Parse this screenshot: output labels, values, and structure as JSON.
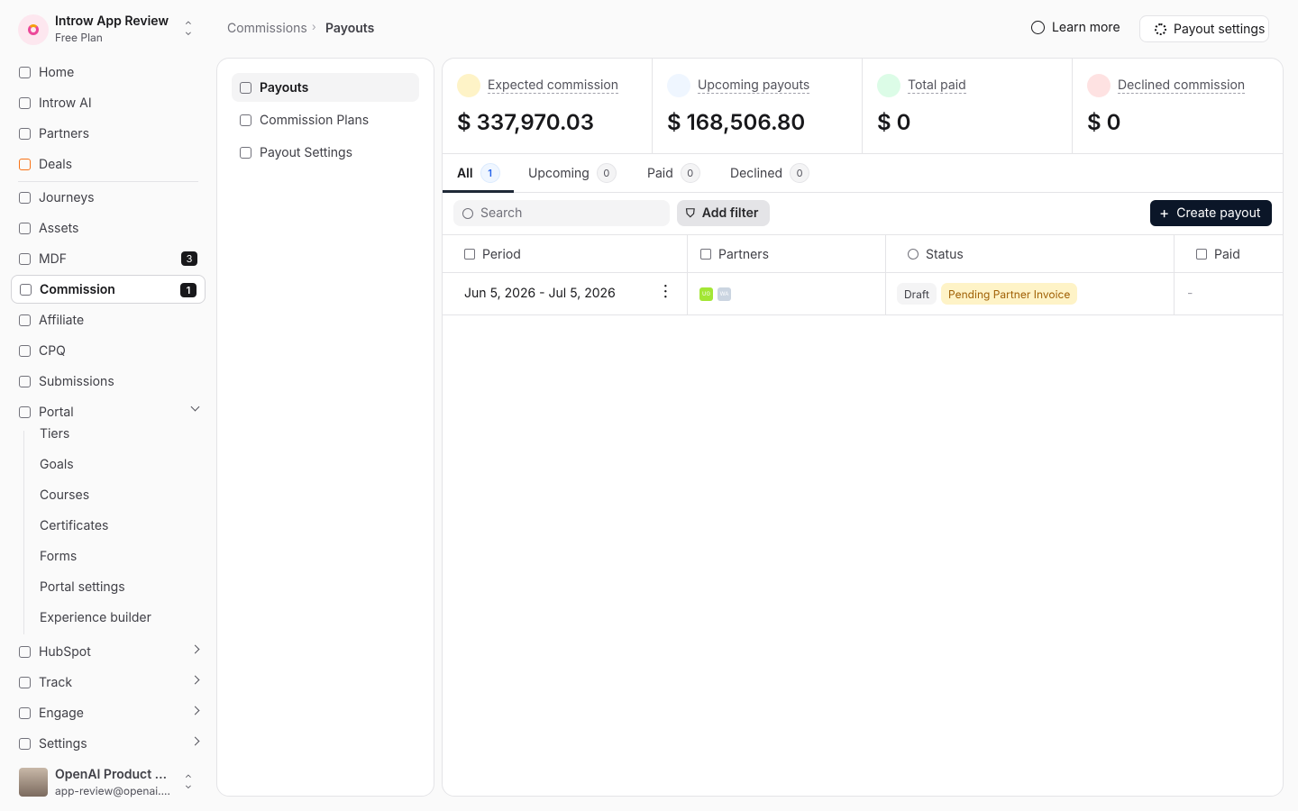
{
  "workspace": {
    "name": "Introw App Review",
    "plan": "Free Plan"
  },
  "nav": {
    "primary": [
      {
        "label": "Home"
      },
      {
        "label": "Introw AI"
      },
      {
        "label": "Partners"
      },
      {
        "label": "Deals"
      }
    ],
    "secondary": [
      {
        "label": "Journeys"
      },
      {
        "label": "Assets"
      },
      {
        "label": "MDF",
        "badge": 3
      },
      {
        "label": "Commission",
        "badge": 1
      },
      {
        "label": "Affiliate"
      },
      {
        "label": "CPQ"
      },
      {
        "label": "Submissions"
      }
    ],
    "portal": {
      "label": "Portal",
      "items": [
        "Tiers",
        "Goals",
        "Courses",
        "Certificates",
        "Forms",
        "Portal settings",
        "Experience builder"
      ]
    },
    "collapsible": [
      "HubSpot",
      "Track",
      "Engage",
      "Settings"
    ]
  },
  "user": {
    "name": "OpenAI Product ...",
    "email": "app-review@openai...."
  },
  "breadcrumb": [
    "Commissions",
    "Payouts"
  ],
  "header_actions": [
    "Learn more",
    "Payout settings"
  ],
  "subnav": [
    "Payouts",
    "Commission Plans",
    "Payout Settings"
  ],
  "stats": [
    {
      "label": "Expected commission",
      "value": "$ 337,970.03"
    },
    {
      "label": "Upcoming payouts",
      "value": "$ 168,506.80"
    },
    {
      "label": "Total paid",
      "value": "$ 0"
    },
    {
      "label": "Declined commission",
      "value": "$ 0"
    }
  ],
  "tabs": [
    {
      "label": "All",
      "count": 1
    },
    {
      "label": "Upcoming",
      "count": 0
    },
    {
      "label": "Paid",
      "count": 0
    },
    {
      "label": "Declined",
      "count": 0
    }
  ],
  "toolbar": {
    "search_placeholder": "Search",
    "filter": "Add filter",
    "create": "Create payout"
  },
  "table": {
    "columns": [
      "Period",
      "Partners",
      "Status",
      "Paid"
    ],
    "rows": [
      {
        "period": "Jun 5, 2026 - Jul 5, 2026",
        "partners": [
          "UG",
          "WA"
        ],
        "status": [
          "Draft",
          "Pending Partner Invoice"
        ],
        "paid": "-"
      }
    ]
  }
}
